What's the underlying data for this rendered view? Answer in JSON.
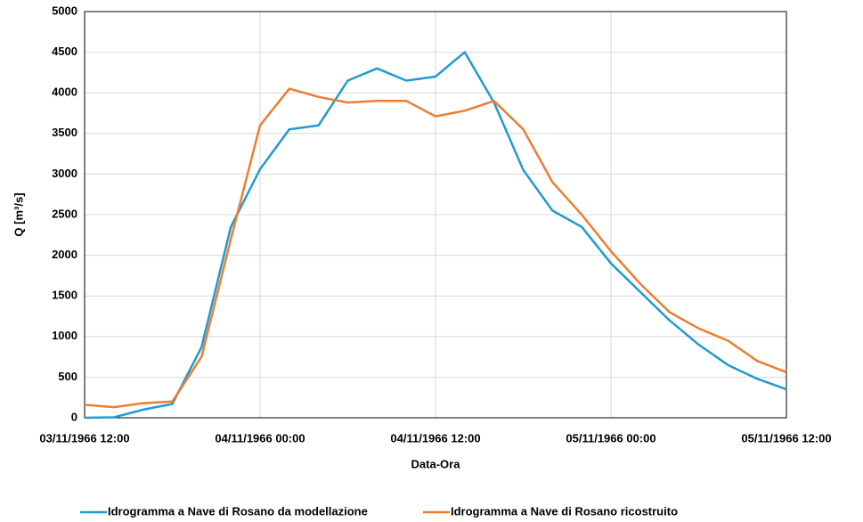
{
  "chart_data": {
    "type": "line",
    "x_label": "Data-Ora",
    "y_label": "Q [m³/s]",
    "x": [
      "1966-11-03T12:00",
      "1966-11-03T14:00",
      "1966-11-03T16:00",
      "1966-11-03T18:00",
      "1966-11-03T20:00",
      "1966-11-03T22:00",
      "1966-11-04T00:00",
      "1966-11-04T02:00",
      "1966-11-04T04:00",
      "1966-11-04T06:00",
      "1966-11-04T08:00",
      "1966-11-04T10:00",
      "1966-11-04T12:00",
      "1966-11-04T14:00",
      "1966-11-04T16:00",
      "1966-11-04T18:00",
      "1966-11-04T20:00",
      "1966-11-04T22:00",
      "1966-11-05T00:00",
      "1966-11-05T02:00",
      "1966-11-05T04:00",
      "1966-11-05T06:00",
      "1966-11-05T08:00",
      "1966-11-05T10:00",
      "1966-11-05T12:00"
    ],
    "series": [
      {
        "name": "Idrogramma a Nave di Rosano da modellazione",
        "color": "#1f9bd1",
        "values": [
          0,
          5,
          100,
          170,
          870,
          2350,
          3060,
          3550,
          3600,
          4150,
          4300,
          4150,
          4200,
          4500,
          3880,
          3050,
          2550,
          2350,
          1900,
          1550,
          1200,
          900,
          650,
          480,
          350
        ]
      },
      {
        "name": "Idrogramma a Nave di Rosano ricostruito",
        "color": "#ee7d31",
        "values": [
          160,
          130,
          180,
          200,
          750,
          2200,
          3600,
          4050,
          3950,
          3880,
          3900,
          3900,
          3710,
          3780,
          3900,
          3550,
          2900,
          2500,
          2050,
          1650,
          1300,
          1100,
          950,
          700,
          560
        ]
      }
    ],
    "xlim": [
      "1966-11-03T12:00",
      "1966-11-05T12:00"
    ],
    "xticks": [
      {
        "value": "1966-11-03T12:00",
        "label": "03/11/1966 12:00"
      },
      {
        "value": "1966-11-04T00:00",
        "label": "04/11/1966 00:00"
      },
      {
        "value": "1966-11-04T12:00",
        "label": "04/11/1966 12:00"
      },
      {
        "value": "1966-11-05T00:00",
        "label": "05/11/1966 00:00"
      },
      {
        "value": "1966-11-05T12:00",
        "label": "05/11/1966 12:00"
      }
    ],
    "ylim": [
      0,
      5000
    ],
    "yticks": [
      0,
      500,
      1000,
      1500,
      2000,
      2500,
      3000,
      3500,
      4000,
      4500,
      5000
    ],
    "grid": true,
    "legend": "bottom"
  }
}
